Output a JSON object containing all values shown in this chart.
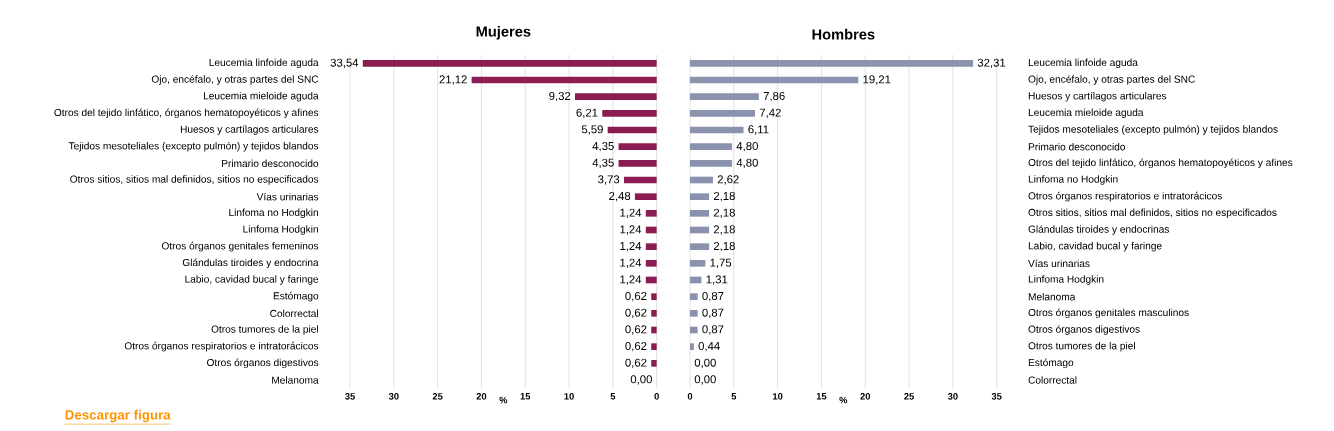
{
  "chart_data": [
    {
      "type": "bar",
      "orientation": "horizontal",
      "title": "Mujeres",
      "xlabel": "%",
      "color": "#8b1c52",
      "grid": "x",
      "xlim": [
        35,
        0
      ],
      "xticks": [
        35,
        30,
        25,
        20,
        15,
        10,
        5,
        0
      ],
      "categories": [
        "Leucemia linfoide aguda",
        "Ojo, encéfalo, y otras partes del SNC",
        "Leucemia mieloide aguda",
        "Otros del tejido linfático, órganos hematopoyéticos y afines",
        "Huesos y cartílagos articulares",
        "Tejidos mesoteliales (excepto pulmón) y tejidos blandos",
        "Primario desconocido",
        "Otros sitios, sitios mal definidos, sitios no especificados",
        "Vías urinarias",
        "Linfoma no Hodgkin",
        "Linfoma Hodgkin",
        "Otros órganos genitales femeninos",
        "Glándulas tiroides y endocrina",
        "Labio, cavidad bucal y faringe",
        "Estómago",
        "Colorrectal",
        "Otros tumores de la piel",
        "Otros órganos respiratorios e intratorácicos",
        "Otros órganos digestivos",
        "Melanoma"
      ],
      "values": [
        33.54,
        21.12,
        9.32,
        6.21,
        5.59,
        4.35,
        4.35,
        3.73,
        2.48,
        1.24,
        1.24,
        1.24,
        1.24,
        1.24,
        0.62,
        0.62,
        0.62,
        0.62,
        0.62,
        0.0
      ],
      "value_labels": [
        "33,54",
        "21,12",
        "9,32",
        "6,21",
        "5,59",
        "4,35",
        "4,35",
        "3,73",
        "2,48",
        "1,24",
        "1,24",
        "1,24",
        "1,24",
        "1,24",
        "0,62",
        "0,62",
        "0,62",
        "0,62",
        "0,62",
        "0,00"
      ],
      "annotations": [
        "Descargar figura"
      ]
    },
    {
      "type": "bar",
      "orientation": "horizontal",
      "title": "Hombres",
      "xlabel": "%",
      "color": "#8a92ae",
      "grid": "x",
      "xlim": [
        0,
        35
      ],
      "xticks": [
        0,
        5,
        10,
        15,
        20,
        25,
        30,
        35
      ],
      "categories": [
        "Leucemia linfoide aguda",
        "Ojo, encéfalo, y otras partes del SNC",
        "Huesos y cartílagos articulares",
        "Leucemia mieloide aguda",
        "Tejidos mesoteliales (excepto pulmón) y tejidos blandos",
        "Primario desconocido",
        "Otros del tejido linfático, órganos hematopoyéticos y afines",
        "Linfoma no Hodgkin",
        "Otros órganos respiratorios e intratorácicos",
        "Otros sitios, sitios mal definidos, sitios no especificados",
        "Glándulas tiroides y endocrinas",
        "Labio, cavidad bucal y faringe",
        "Vías urinarias",
        "Linfoma Hodgkin",
        "Melanoma",
        "Otros órganos genitales masculinos",
        "Otros órganos digestivos",
        "Otros tumores de la piel",
        "Estómago",
        "Colorrectal"
      ],
      "values": [
        32.31,
        19.21,
        7.86,
        7.42,
        6.11,
        4.8,
        4.8,
        2.62,
        2.18,
        2.18,
        2.18,
        2.18,
        1.75,
        1.31,
        0.87,
        0.87,
        0.87,
        0.44,
        0.0,
        0.0
      ],
      "value_labels": [
        "32,31",
        "19,21",
        "7,86",
        "7,42",
        "6,11",
        "4,80",
        "4,80",
        "2,62",
        "2,18",
        "2,18",
        "2,18",
        "2,18",
        "1,75",
        "1,31",
        "0,87",
        "0,87",
        "0,87",
        "0,44",
        "0,00",
        "0,00"
      ]
    }
  ]
}
